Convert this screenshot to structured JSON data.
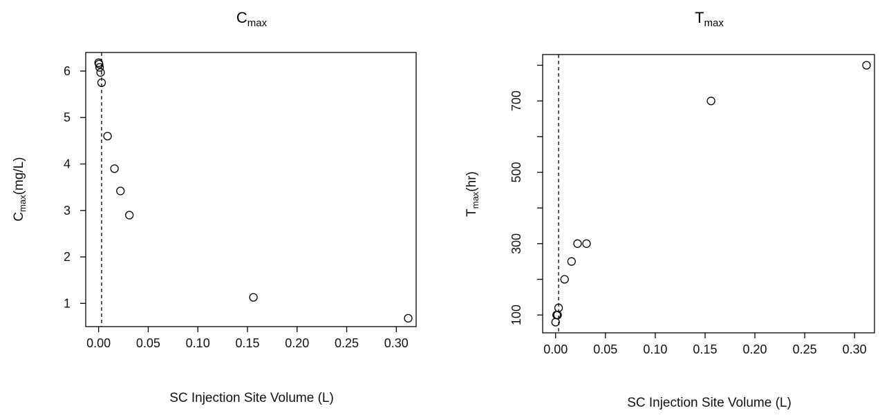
{
  "chart_data": [
    {
      "type": "scatter",
      "title": "C",
      "title_sub": "max",
      "xlabel": "SC Injection Site Volume (L)",
      "ylabel": "C",
      "ylabel_sub": "max",
      "ylabel_unit": "(mg/L)",
      "xlim": [
        -0.013,
        0.32
      ],
      "ylim": [
        0.5,
        6.4
      ],
      "xticks": [
        0.0,
        0.05,
        0.1,
        0.15,
        0.2,
        0.25,
        0.3
      ],
      "xtick_labels": [
        "0.00",
        "0.05",
        "0.10",
        "0.15",
        "0.20",
        "0.25",
        "0.30"
      ],
      "yticks": [
        1,
        2,
        3,
        4,
        5,
        6
      ],
      "ytick_labels": [
        "1",
        "2",
        "3",
        "4",
        "5",
        "6"
      ],
      "ref_vline": 0.003,
      "points": [
        {
          "x": 0.0,
          "y": 6.18
        },
        {
          "x": 0.0005,
          "y": 6.15
        },
        {
          "x": 0.001,
          "y": 6.08
        },
        {
          "x": 0.002,
          "y": 5.97
        },
        {
          "x": 0.003,
          "y": 5.75
        },
        {
          "x": 0.009,
          "y": 4.6
        },
        {
          "x": 0.016,
          "y": 3.9
        },
        {
          "x": 0.022,
          "y": 3.42
        },
        {
          "x": 0.031,
          "y": 2.9
        },
        {
          "x": 0.156,
          "y": 1.13
        },
        {
          "x": 0.312,
          "y": 0.68
        }
      ]
    },
    {
      "type": "scatter",
      "title": "T",
      "title_sub": "max",
      "xlabel": "SC Injection Site Volume (L)",
      "ylabel": "T",
      "ylabel_sub": "max",
      "ylabel_unit": "(hr)",
      "xlim": [
        -0.013,
        0.32
      ],
      "ylim": [
        50,
        830
      ],
      "xticks": [
        0.0,
        0.05,
        0.1,
        0.15,
        0.2,
        0.25,
        0.3
      ],
      "xtick_labels": [
        "0.00",
        "0.05",
        "0.10",
        "0.15",
        "0.20",
        "0.25",
        "0.30"
      ],
      "yticks": [
        100,
        300,
        500,
        700
      ],
      "ytick_labels": [
        "100",
        "300",
        "500",
        "700"
      ],
      "minor_yticks": [
        200,
        400,
        600,
        800
      ],
      "ref_vline": 0.003,
      "points": [
        {
          "x": 0.0,
          "y": 80
        },
        {
          "x": 0.001,
          "y": 100
        },
        {
          "x": 0.002,
          "y": 100
        },
        {
          "x": 0.003,
          "y": 120
        },
        {
          "x": 0.009,
          "y": 200
        },
        {
          "x": 0.016,
          "y": 250
        },
        {
          "x": 0.022,
          "y": 300
        },
        {
          "x": 0.031,
          "y": 300
        },
        {
          "x": 0.156,
          "y": 700
        },
        {
          "x": 0.312,
          "y": 800
        }
      ]
    }
  ]
}
